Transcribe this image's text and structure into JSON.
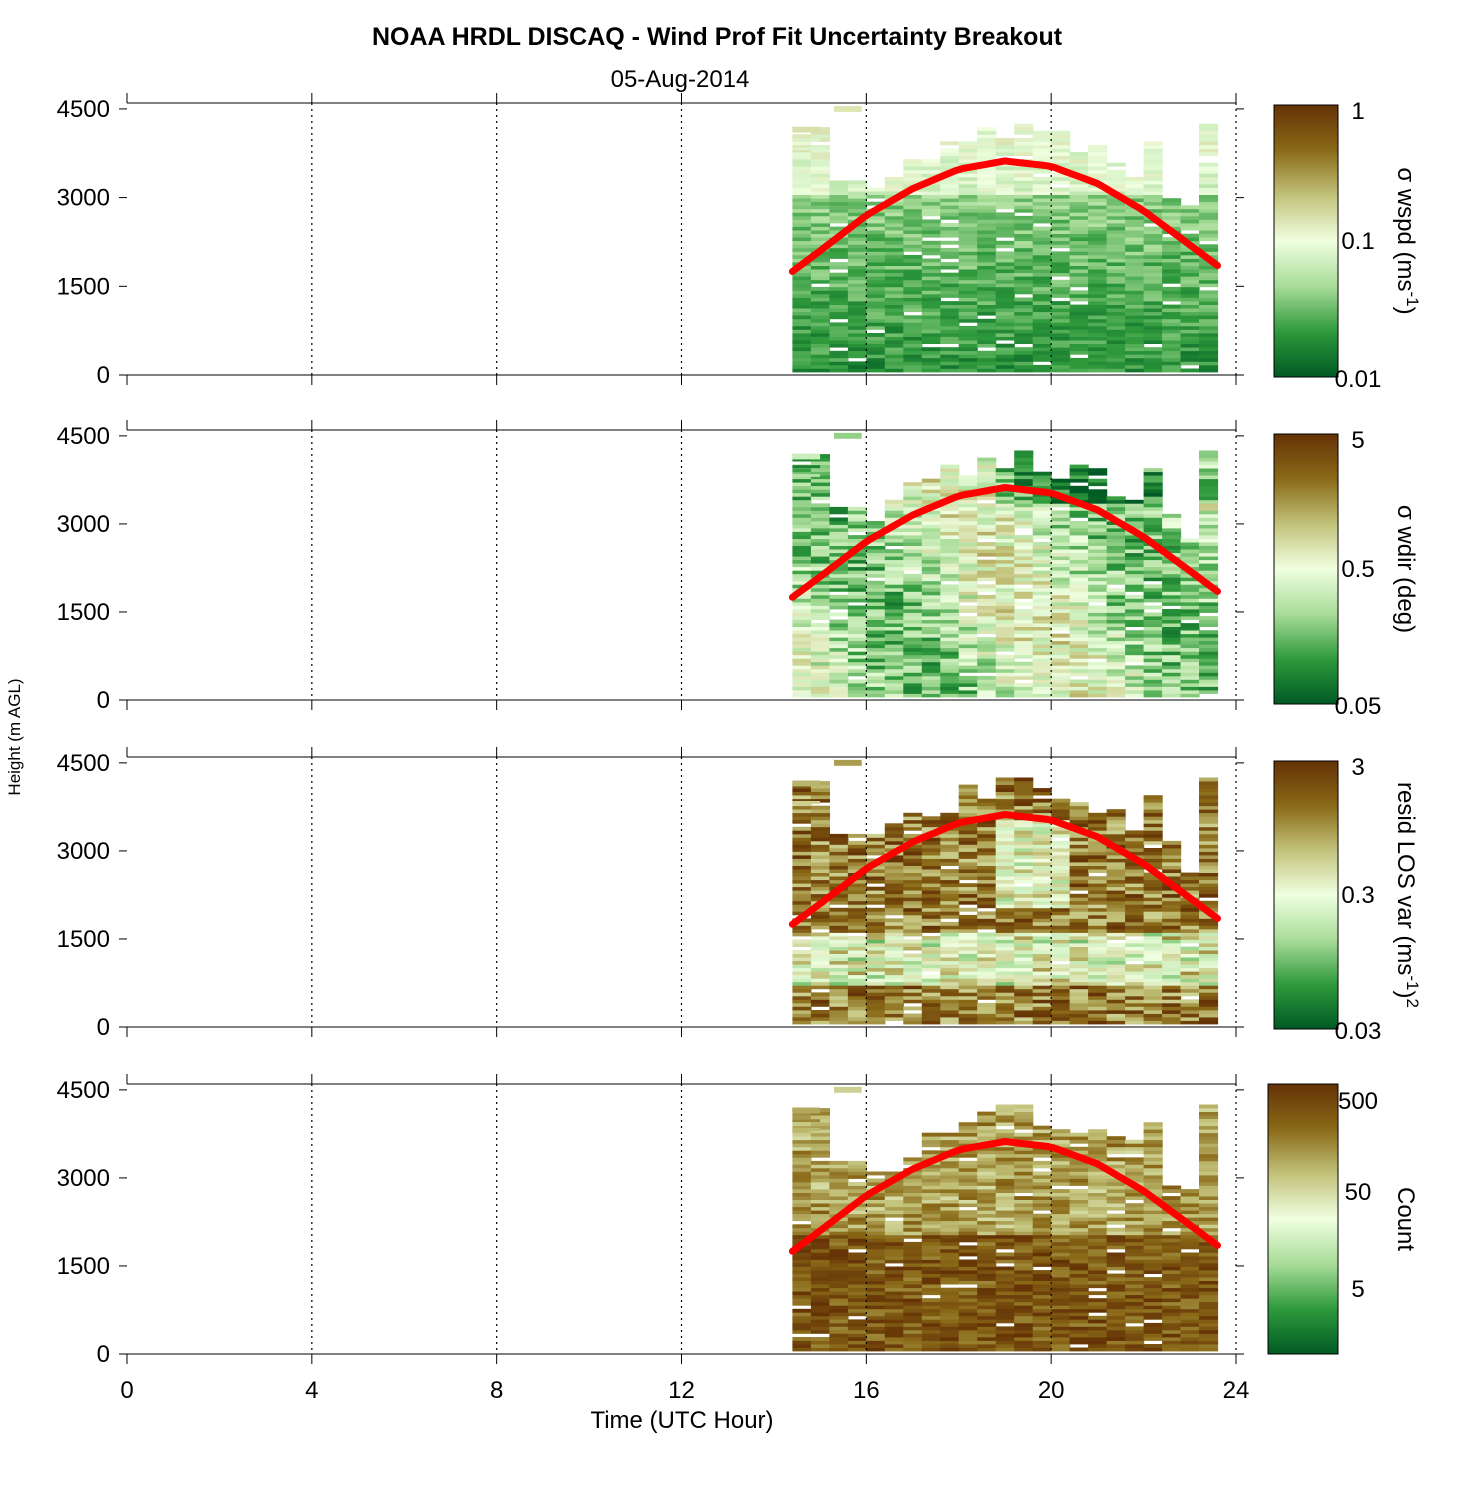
{
  "title": "NOAA HRDL DISCAQ - Wind Prof Fit Uncertainty Breakout",
  "subtitle": "05-Aug-2014",
  "chart_data": {
    "type": "heatmap",
    "xlabel": "Time (UTC Hour)",
    "ylabel": "Height (m AGL)",
    "xlim": [
      0,
      24
    ],
    "ylim": [
      0,
      4600
    ],
    "xticks": [
      "0",
      "4",
      "8",
      "12",
      "16",
      "20",
      "24"
    ],
    "yticks": [
      "0",
      "1500",
      "3000",
      "4500"
    ],
    "grid": "dotted vertical lines every 4 hours",
    "colormap": [
      "#005a24",
      "#2f9a3c",
      "#a8dc98",
      "#efffe0",
      "#c2c27a",
      "#8a6a18",
      "#643205"
    ],
    "curve_color": "#ff0000",
    "data_time_range": [
      14.4,
      23.6
    ],
    "boundary_curve": {
      "x": [
        14.4,
        15,
        16,
        17,
        18,
        19,
        20,
        21,
        22,
        23,
        23.6
      ],
      "y": [
        1750,
        2100,
        2700,
        3150,
        3480,
        3620,
        3530,
        3240,
        2780,
        2200,
        1850
      ]
    },
    "panels": [
      {
        "name": "wspd",
        "colorbar_label": "σ wspd (ms",
        "colorbar_sup": "-1",
        "colorbar_tail": ")",
        "colorbar_scale": "log",
        "colorbar_range": [
          0.01,
          1
        ],
        "colorbar_ticks": [
          "1",
          "0.1",
          "0.01"
        ],
        "dominant_values": "low (green) except near top"
      },
      {
        "name": "wdir",
        "colorbar_label": "σ wdir (deg)",
        "colorbar_sup": "",
        "colorbar_tail": "",
        "colorbar_scale": "log",
        "colorbar_range": [
          0.05,
          5
        ],
        "colorbar_ticks": [
          "5",
          "0.5",
          "0.05"
        ],
        "dominant_values": "mixed green / light"
      },
      {
        "name": "resid",
        "colorbar_label": "resid LOS var (ms",
        "colorbar_sup": "-1",
        "colorbar_tail": ")",
        "colorbar_sup2": "2",
        "colorbar_scale": "log",
        "colorbar_range": [
          0.03,
          3
        ],
        "colorbar_ticks": [
          "3",
          "0.3",
          "0.03"
        ],
        "dominant_values": "high (brown) with light middle"
      },
      {
        "name": "count",
        "colorbar_label": "Count",
        "colorbar_sup": "",
        "colorbar_tail": "",
        "colorbar_scale": "log",
        "colorbar_range": [
          1,
          500
        ],
        "colorbar_ticks": [
          "500",
          "50",
          "5"
        ],
        "dominant_values": "high (brown)"
      }
    ]
  }
}
